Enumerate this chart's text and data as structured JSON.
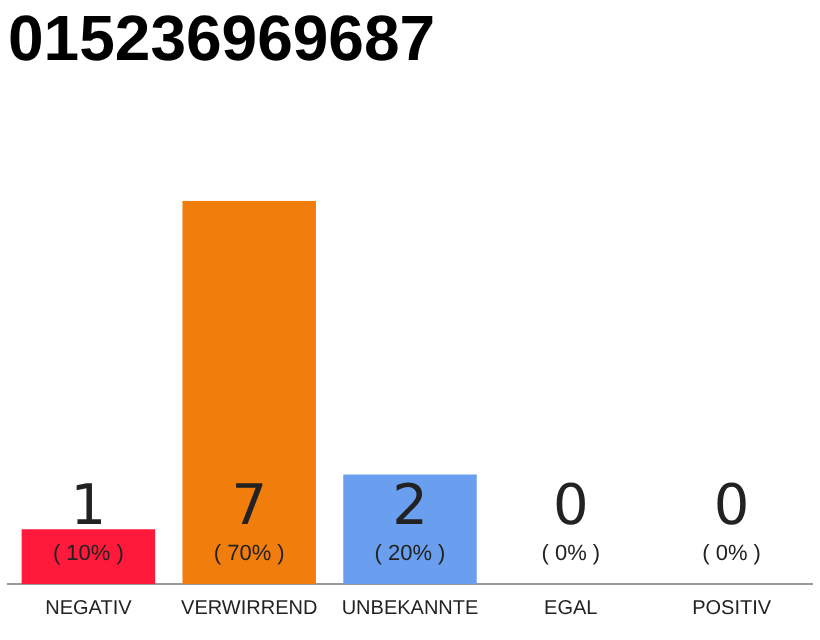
{
  "chart_data": {
    "type": "bar",
    "title": "015236969687",
    "categories": [
      "NEGATIV",
      "VERWIRREND",
      "UNBEKANNTE",
      "EGAL",
      "POSITIV"
    ],
    "values": [
      1,
      7,
      2,
      0,
      0
    ],
    "colors": [
      "#ff1a3c",
      "#f07d0c",
      "#6a9ff0",
      "#cccccc",
      "#cccccc"
    ],
    "data_labels": true,
    "annotations": [
      "( 10% )",
      "( 70% )",
      "( 20% )",
      "( 0% )",
      "( 0% )"
    ],
    "legend": false,
    "grid": false
  }
}
